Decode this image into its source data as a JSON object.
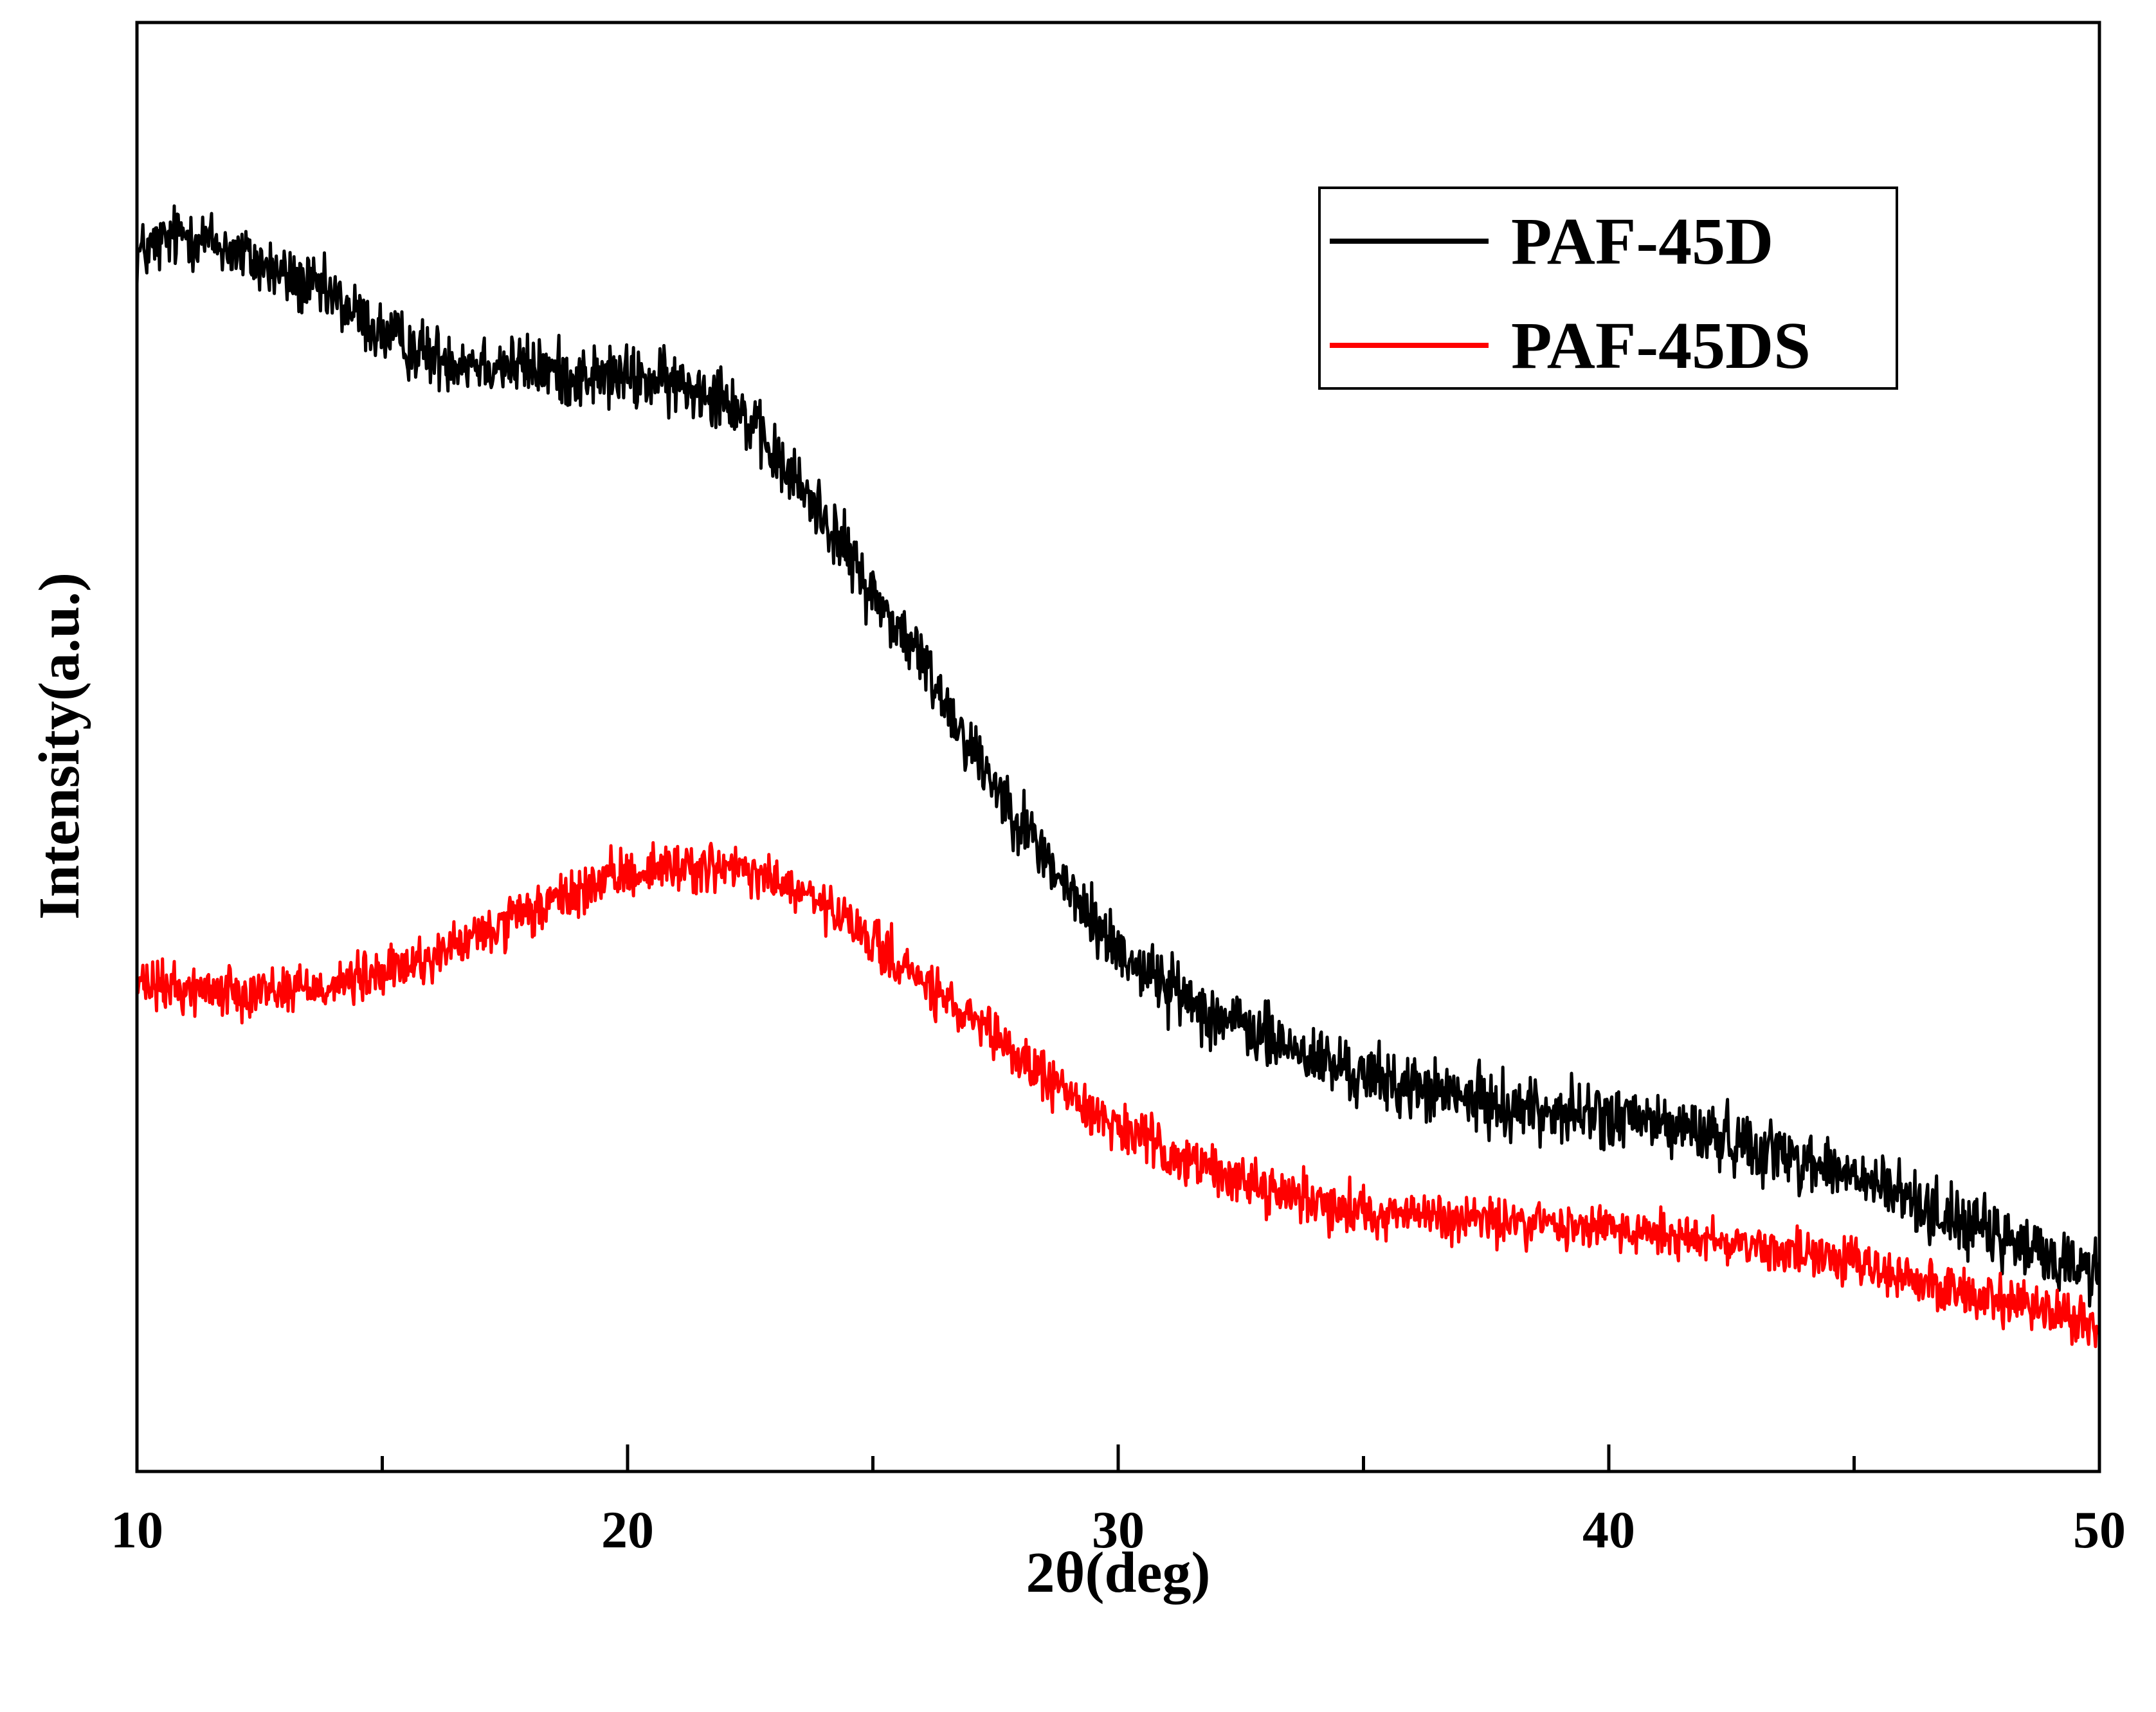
{
  "chart_data": {
    "type": "line",
    "title": "",
    "xlabel": "2θ(deg)",
    "ylabel": "Intensity(a.u.)",
    "xlim": [
      10,
      50
    ],
    "ylim": [
      0,
      100
    ],
    "x_ticks": [
      10,
      20,
      30,
      40,
      50
    ],
    "x_minor_ticks": [
      15,
      25,
      35,
      45
    ],
    "y_ticks_shown": false,
    "grid": false,
    "legend": {
      "position": "top-right",
      "entries": [
        "PAF-45D",
        "PAF-45DS"
      ]
    },
    "series": [
      {
        "name": "PAF-45D",
        "color": "#000000",
        "noise": 2.2,
        "x": [
          10,
          11,
          12,
          13,
          14,
          15,
          16,
          17,
          18,
          19,
          20,
          21,
          22,
          23,
          24,
          25,
          26,
          27,
          28,
          29,
          30,
          31,
          32,
          33,
          34,
          35,
          36,
          37,
          38,
          39,
          40,
          41,
          42,
          43,
          44,
          45,
          46,
          47,
          48,
          49,
          50
        ],
        "y": [
          84.0,
          85.5,
          84.2,
          82.5,
          81.0,
          78.5,
          77.0,
          76.6,
          76.2,
          75.6,
          75.5,
          75.0,
          74.5,
          70.0,
          66.0,
          60.5,
          56.0,
          50.0,
          45.0,
          40.0,
          36.0,
          33.5,
          31.5,
          30.0,
          28.5,
          27.3,
          26.5,
          25.8,
          25.2,
          24.8,
          24.5,
          24.0,
          23.3,
          22.5,
          21.5,
          20.3,
          19.0,
          17.5,
          16.0,
          14.8,
          13.8
        ]
      },
      {
        "name": "PAF-45DS",
        "color": "#ff0000",
        "noise": 1.7,
        "x": [
          10,
          11,
          12,
          13,
          14,
          15,
          16,
          17,
          18,
          19,
          20,
          21,
          22,
          23,
          24,
          25,
          26,
          27,
          28,
          29,
          30,
          31,
          32,
          33,
          34,
          35,
          36,
          37,
          38,
          39,
          40,
          41,
          42,
          43,
          44,
          45,
          46,
          47,
          48,
          49,
          50
        ],
        "y": [
          33.5,
          33.3,
          33.2,
          33.3,
          33.6,
          34.3,
          35.5,
          37.0,
          38.5,
          40.0,
          41.3,
          41.8,
          41.6,
          40.8,
          39.0,
          36.5,
          33.8,
          31.0,
          28.5,
          26.0,
          23.8,
          22.0,
          20.7,
          19.6,
          18.7,
          18.0,
          17.7,
          17.4,
          17.2,
          17.0,
          16.8,
          16.5,
          16.1,
          15.6,
          15.0,
          14.3,
          13.5,
          12.6,
          11.7,
          10.8,
          10.0
        ]
      }
    ]
  }
}
